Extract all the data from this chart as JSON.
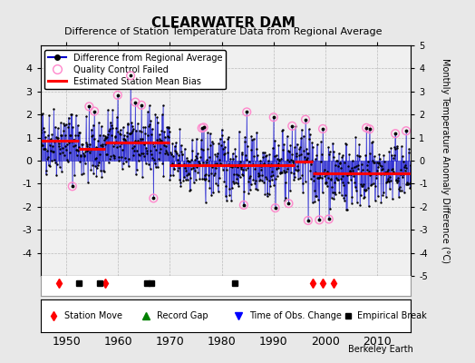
{
  "title": "CLEARWATER DAM",
  "subtitle": "Difference of Station Temperature Data from Regional Average",
  "ylabel": "Monthly Temperature Anomaly Difference (°C)",
  "xlabel_years": [
    1950,
    1960,
    1970,
    1980,
    1990,
    2000,
    2010
  ],
  "ylim": [
    -5,
    5
  ],
  "xlim": [
    1945.0,
    2016.5
  ],
  "background_color": "#e8e8e8",
  "plot_bg_color": "#f0f0f0",
  "grid_color": "#bbbbbb",
  "line_color": "#0000cc",
  "dot_color": "#000000",
  "bias_color": "#ff0000",
  "qc_color": "#ff88cc",
  "watermark": "Berkeley Earth",
  "station_move_years": [
    1948.5,
    1957.5,
    1997.5,
    1999.5,
    2001.5
  ],
  "empirical_break_years": [
    1952.5,
    1956.5,
    1965.5,
    1966.5,
    1982.5
  ],
  "bias_segments": [
    {
      "start": 1945.0,
      "end": 1952.5,
      "value": 0.85
    },
    {
      "start": 1952.5,
      "end": 1957.5,
      "value": 0.5
    },
    {
      "start": 1957.5,
      "end": 1966.5,
      "value": 0.8
    },
    {
      "start": 1966.5,
      "end": 1970.0,
      "value": 0.8
    },
    {
      "start": 1970.0,
      "end": 1982.5,
      "value": -0.2
    },
    {
      "start": 1982.5,
      "end": 1994.0,
      "value": -0.2
    },
    {
      "start": 1994.0,
      "end": 1997.5,
      "value": -0.05
    },
    {
      "start": 1997.5,
      "end": 2016.5,
      "value": -0.55
    }
  ],
  "seed": 42,
  "years_start": 1945,
  "years_end": 2016
}
